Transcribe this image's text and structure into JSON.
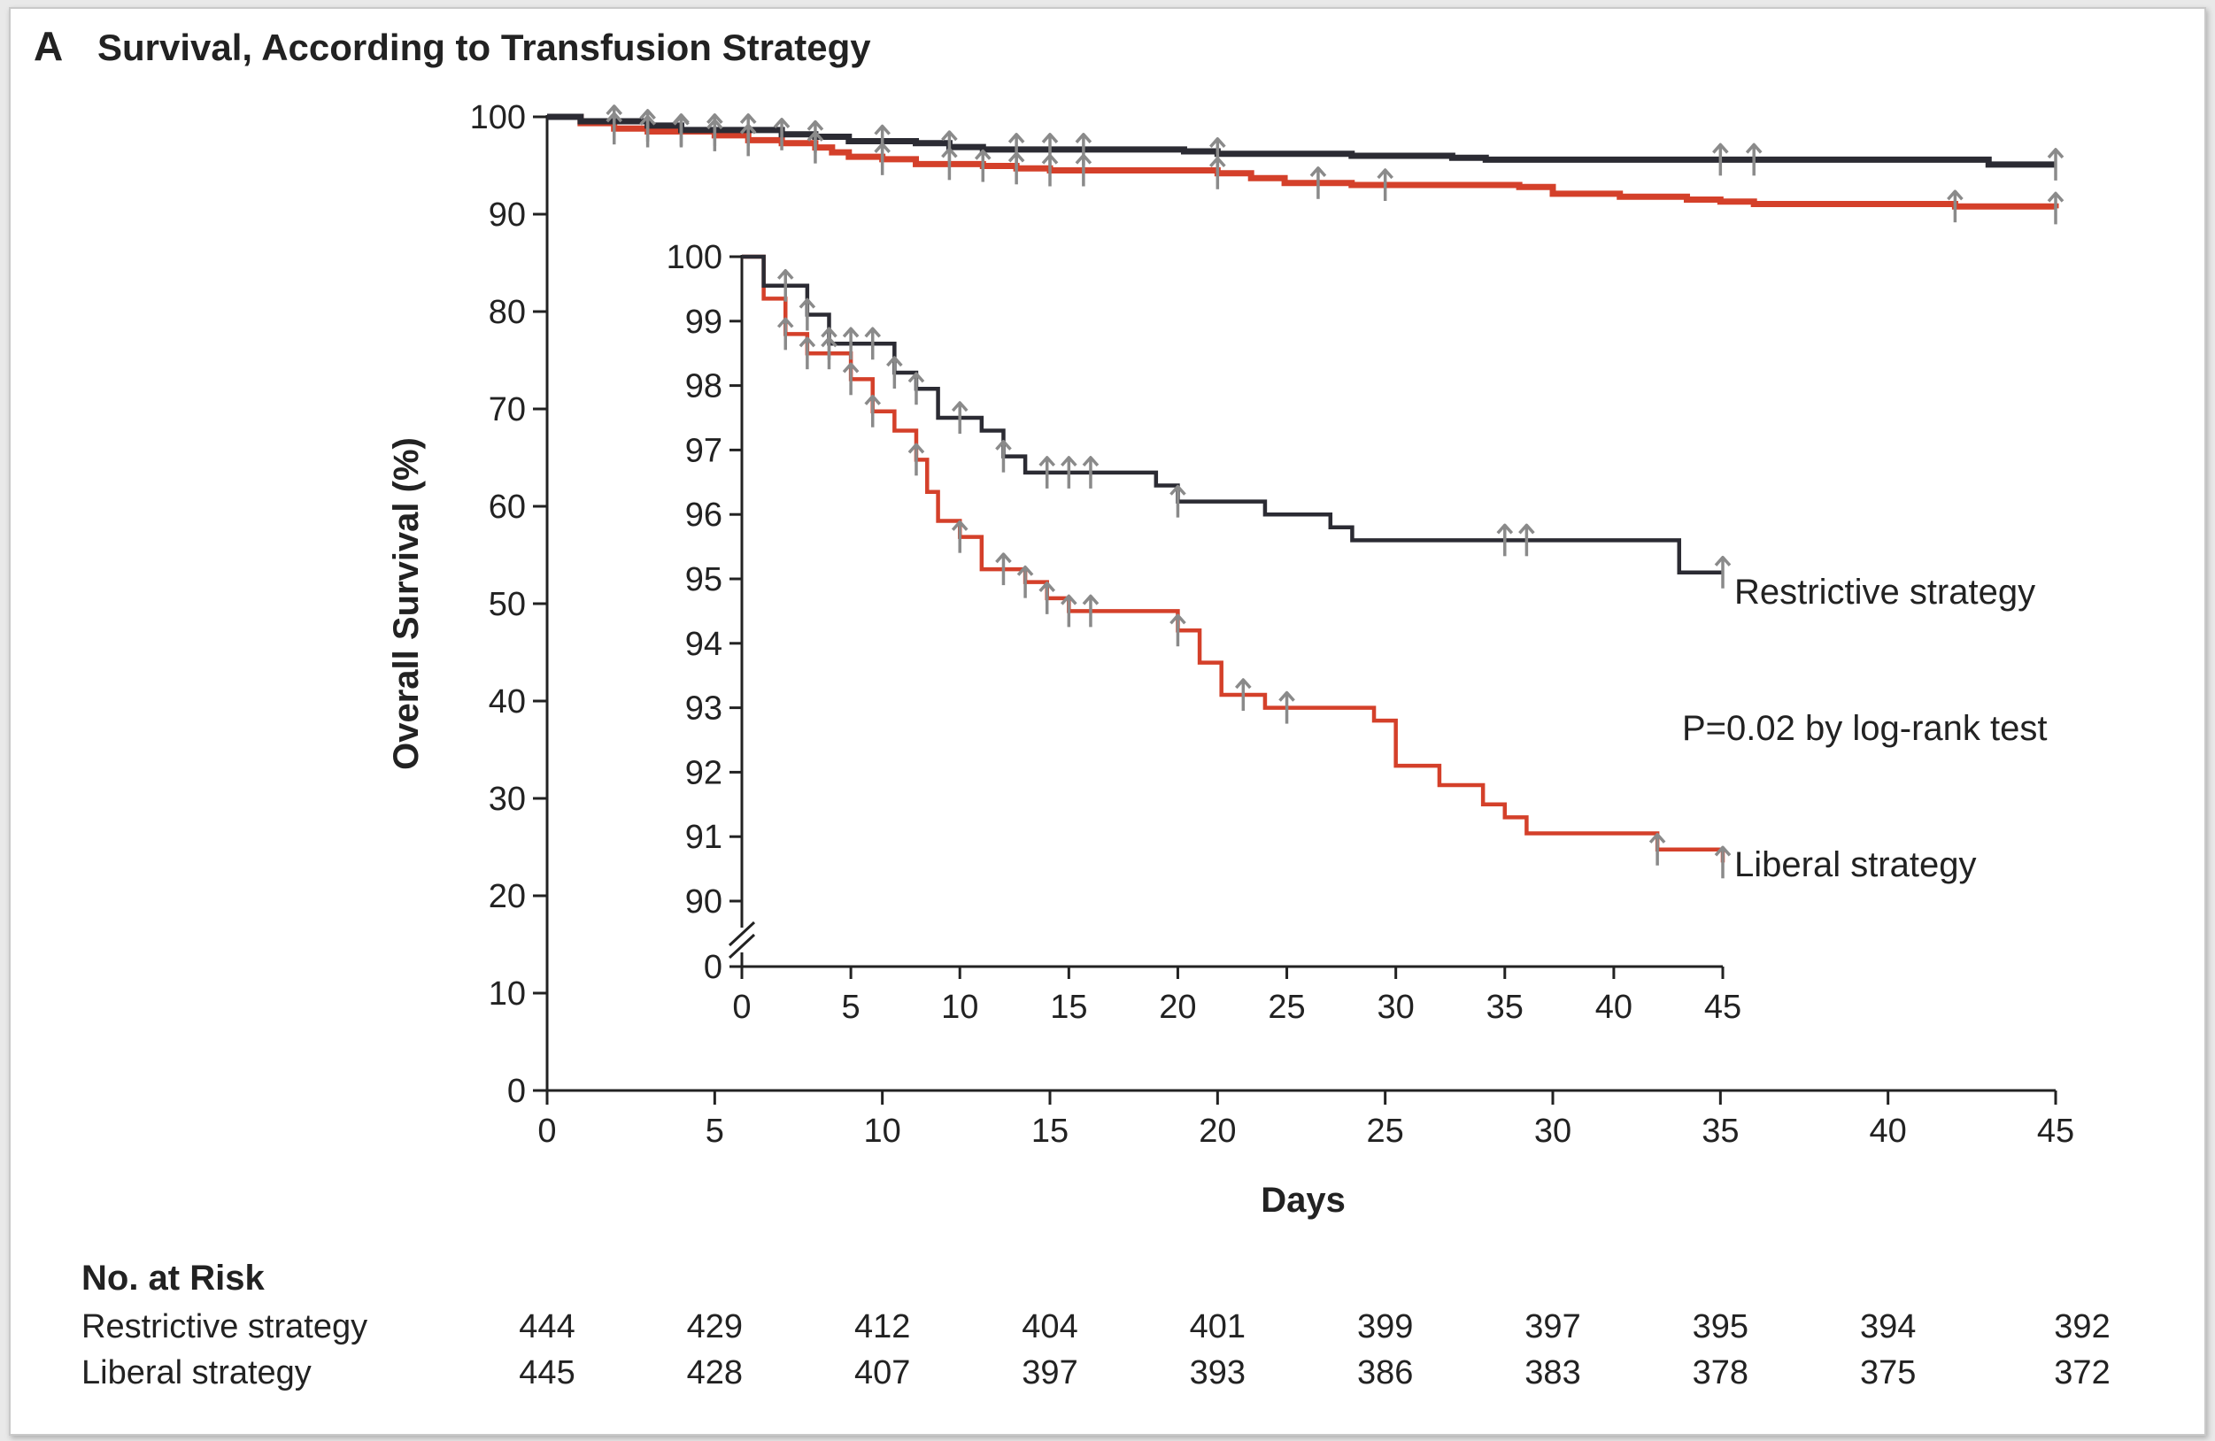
{
  "panel_letter": "A",
  "chart_data": {
    "type": "line",
    "title": "Survival, According to Transfusion Strategy",
    "xlabel": "Days",
    "ylabel": "Overall Survival (%)",
    "xlim": [
      0,
      45
    ],
    "ylim": [
      0,
      100
    ],
    "x_ticks": [
      "0",
      "5",
      "10",
      "15",
      "20",
      "25",
      "30",
      "35",
      "40",
      "45"
    ],
    "y_ticks": [
      "0",
      "10",
      "20",
      "30",
      "40",
      "50",
      "60",
      "70",
      "80",
      "90",
      "100"
    ],
    "colors": {
      "restrictive": "#2b2b33",
      "liberal": "#d4402a",
      "censor": "#8a8a8a"
    },
    "series": [
      {
        "name": "Restrictive strategy",
        "steps": [
          [
            0,
            100
          ],
          [
            1,
            99.55
          ],
          [
            3,
            99.1
          ],
          [
            4,
            98.65
          ],
          [
            7,
            98.2
          ],
          [
            8,
            97.95
          ],
          [
            9,
            97.5
          ],
          [
            11,
            97.3
          ],
          [
            12,
            96.9
          ],
          [
            13,
            96.65
          ],
          [
            19,
            96.45
          ],
          [
            20,
            96.2
          ],
          [
            24,
            96.0
          ],
          [
            27,
            95.8
          ],
          [
            28,
            95.6
          ],
          [
            43,
            95.1
          ],
          [
            45,
            95.1
          ]
        ],
        "censored": [
          2,
          3,
          4,
          5,
          6,
          7,
          8,
          10,
          12,
          14,
          15,
          16,
          20,
          35,
          36,
          45
        ]
      },
      {
        "name": "Liberal strategy",
        "steps": [
          [
            0,
            100
          ],
          [
            1,
            99.35
          ],
          [
            2,
            98.8
          ],
          [
            3,
            98.5
          ],
          [
            5,
            98.1
          ],
          [
            6,
            97.6
          ],
          [
            7,
            97.3
          ],
          [
            8,
            96.85
          ],
          [
            8.5,
            96.35
          ],
          [
            9,
            95.9
          ],
          [
            10,
            95.65
          ],
          [
            11,
            95.15
          ],
          [
            13,
            94.95
          ],
          [
            14,
            94.7
          ],
          [
            15,
            94.5
          ],
          [
            20,
            94.2
          ],
          [
            21,
            93.7
          ],
          [
            22,
            93.2
          ],
          [
            24,
            93.0
          ],
          [
            29,
            92.8
          ],
          [
            30,
            92.1
          ],
          [
            32,
            91.8
          ],
          [
            34,
            91.5
          ],
          [
            35,
            91.3
          ],
          [
            36,
            91.05
          ],
          [
            42,
            90.8
          ],
          [
            45,
            90.6
          ]
        ],
        "censored": [
          2,
          3,
          4,
          5,
          6,
          8,
          10,
          12,
          13,
          14,
          15,
          16,
          20,
          23,
          25,
          42,
          45
        ]
      }
    ],
    "inset": {
      "xlim": [
        0,
        45
      ],
      "ylim": [
        90,
        100
      ],
      "x_ticks": [
        "0",
        "5",
        "10",
        "15",
        "20",
        "25",
        "30",
        "35",
        "40",
        "45"
      ],
      "y_ticks": [
        "100",
        "99",
        "98",
        "97",
        "96",
        "95",
        "94",
        "93",
        "92",
        "91",
        "90"
      ],
      "y_zero_label": "0",
      "axis_break": true
    },
    "annotations": {
      "restrictive_label": "Restrictive strategy",
      "liberal_label": "Liberal strategy",
      "pvalue": "P=0.02 by log-rank test"
    }
  },
  "risk_table": {
    "header": "No. at Risk",
    "rows": [
      {
        "label": "Restrictive strategy",
        "values": [
          "444",
          "429",
          "412",
          "404",
          "401",
          "399",
          "397",
          "395",
          "394",
          "392"
        ]
      },
      {
        "label": "Liberal strategy",
        "values": [
          "445",
          "428",
          "407",
          "397",
          "393",
          "386",
          "383",
          "378",
          "375",
          "372"
        ]
      }
    ]
  }
}
